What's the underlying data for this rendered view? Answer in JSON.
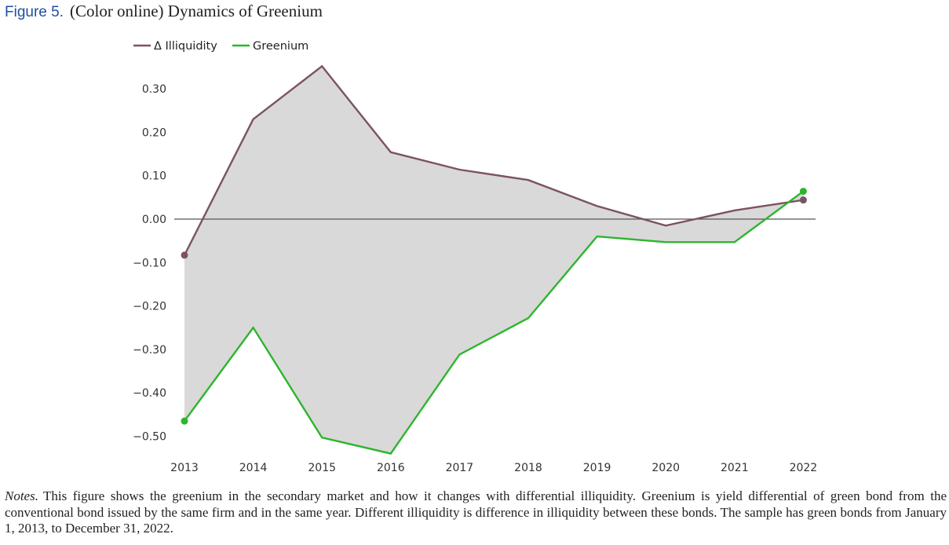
{
  "figure": {
    "label": "Figure 5.",
    "title": "(Color online) Dynamics of Greenium"
  },
  "notes": {
    "label": "Notes.",
    "text": "This figure shows the greenium in the secondary market and how it changes with differential illiquidity. Greenium is yield differential of green bond from the conventional bond issued by the same firm and in the same year. Different illiquidity is difference in illiquidity between these bonds. The sample has green bonds from January 1, 2013, to December 31, 2022."
  },
  "chart_data": {
    "type": "line",
    "title": "",
    "xlabel": "",
    "ylabel": "",
    "x": [
      "2013",
      "2014",
      "2015",
      "2016",
      "2017",
      "2018",
      "2019",
      "2020",
      "2021",
      "2022"
    ],
    "y_ticks": [
      "0.30",
      "0.20",
      "0.10",
      "0.00",
      "−0.10",
      "−0.20",
      "−0.30",
      "−0.40",
      "−0.50"
    ],
    "ylim": [
      -0.54,
      0.35
    ],
    "grid": false,
    "zero_line": true,
    "fill_between_series": true,
    "fill_color": "#d9d9d9",
    "legend": "top-left",
    "series": [
      {
        "name": "Δ Illiquidity",
        "color": "#7b5264",
        "values": [
          -0.083,
          0.23,
          0.352,
          0.154,
          0.114,
          0.09,
          0.03,
          -0.015,
          0.02,
          0.044
        ],
        "end_markers": true
      },
      {
        "name": "Greenium",
        "color": "#2db52d",
        "values": [
          -0.465,
          -0.25,
          -0.503,
          -0.54,
          -0.312,
          -0.228,
          -0.04,
          -0.053,
          -0.053,
          0.064
        ],
        "end_markers": true
      }
    ]
  }
}
